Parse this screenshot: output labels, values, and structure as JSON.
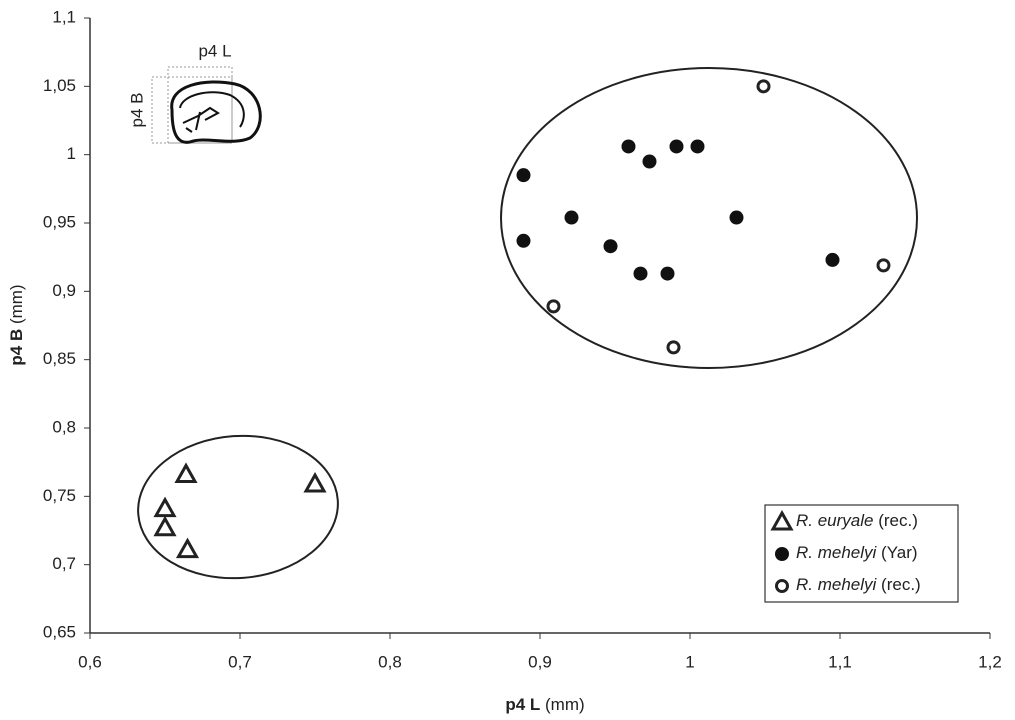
{
  "chart_data": {
    "type": "scatter",
    "x_label": {
      "bold": "p4 L",
      "unit": "(mm)"
    },
    "y_label": {
      "bold": "p4 B",
      "unit": "(mm)"
    },
    "inset": {
      "width_label": "p4 L",
      "height_label": "p4 B"
    },
    "xlim": [
      0.6,
      1.2
    ],
    "xticks": [
      {
        "value": 0.6,
        "label": "0,6"
      },
      {
        "value": 0.7,
        "label": "0,7"
      },
      {
        "value": 0.8,
        "label": "0,8"
      },
      {
        "value": 0.9,
        "label": "0,9"
      },
      1,
      {
        "value": 1.1,
        "label": "1,1"
      },
      {
        "value": 1.2,
        "label": "1,2"
      }
    ],
    "ylim": [
      0.65,
      1.1
    ],
    "yticks": [
      {
        "value": 0.65,
        "label": "0,65"
      },
      {
        "value": 0.7,
        "label": "0,7"
      },
      {
        "value": 0.75,
        "label": "0,75"
      },
      {
        "value": 0.8,
        "label": "0,8"
      },
      {
        "value": 0.85,
        "label": "0,85"
      },
      {
        "value": 0.9,
        "label": "0,9"
      },
      {
        "value": 0.95,
        "label": "0,95"
      },
      1,
      {
        "value": 1.05,
        "label": "1,05"
      },
      {
        "value": 1.1,
        "label": "1,1"
      }
    ],
    "grid": false,
    "legend": "lower right",
    "series": [
      {
        "name": "R. euryale",
        "qualifier": "(rec.)",
        "marker": "triangle",
        "color": "#222222",
        "x": [
          0.664,
          0.65,
          0.65,
          0.665,
          0.75
        ],
        "values": [
          0.766,
          0.741,
          0.727,
          0.711,
          0.759
        ]
      },
      {
        "name": "R. mehelyi",
        "qualifier": "(Yar)",
        "marker": "filled-circle",
        "color": "#111111",
        "x": [
          0.889,
          0.959,
          0.973,
          0.991,
          1.005,
          0.921,
          0.889,
          0.947,
          0.967,
          0.985,
          1.031,
          1.095
        ],
        "values": [
          0.985,
          1.006,
          0.995,
          1.006,
          1.006,
          0.954,
          0.937,
          0.933,
          0.913,
          0.913,
          0.954,
          0.923
        ]
      },
      {
        "name": "R. mehelyi",
        "qualifier": "(rec.)",
        "marker": "open-circle",
        "color": "#222222",
        "x": [
          1.049,
          1.129,
          0.909,
          0.989
        ],
        "values": [
          1.05,
          0.919,
          0.889,
          0.859
        ]
      }
    ]
  }
}
